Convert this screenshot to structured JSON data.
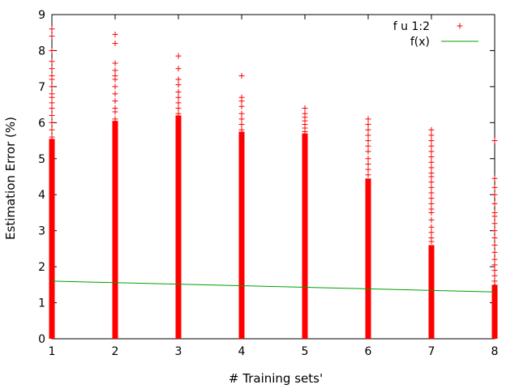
{
  "chart_data": {
    "type": "scatter",
    "xlabel": "# Training sets'",
    "ylabel": "Estimation Error (%)",
    "xlim": [
      1,
      8
    ],
    "ylim": [
      0,
      9
    ],
    "x_ticks": [
      1,
      2,
      3,
      4,
      5,
      6,
      7,
      8
    ],
    "y_ticks": [
      0,
      1,
      2,
      3,
      4,
      5,
      6,
      7,
      8,
      9
    ],
    "grid": false,
    "legend_position": "top-right",
    "series": [
      {
        "name": "f u 1:2",
        "type": "scatter",
        "marker": "plus",
        "color": "#ff0000",
        "columns": [
          {
            "x": 1,
            "dense_range": [
              0,
              5.55
            ],
            "points": [
              5.6,
              5.8,
              6.0,
              6.2,
              6.4,
              6.55,
              6.7,
              6.8,
              7.0,
              7.2,
              7.3,
              7.5,
              7.7,
              8.0,
              8.4,
              8.6
            ]
          },
          {
            "x": 2,
            "dense_range": [
              0,
              6.05
            ],
            "points": [
              6.1,
              6.3,
              6.4,
              6.6,
              6.8,
              7.0,
              7.2,
              7.3,
              7.45,
              7.65,
              8.2,
              8.45
            ]
          },
          {
            "x": 3,
            "dense_range": [
              0,
              6.2
            ],
            "points": [
              6.25,
              6.4,
              6.55,
              6.7,
              6.85,
              7.05,
              7.2,
              7.5,
              7.85
            ]
          },
          {
            "x": 4,
            "dense_range": [
              0,
              5.75
            ],
            "points": [
              5.8,
              5.95,
              6.1,
              6.25,
              6.45,
              6.6,
              6.7,
              7.3
            ]
          },
          {
            "x": 5,
            "dense_range": [
              0,
              5.7
            ],
            "points": [
              5.75,
              5.85,
              5.95,
              6.05,
              6.15,
              6.25,
              6.4
            ]
          },
          {
            "x": 6,
            "dense_range": [
              0,
              4.45
            ],
            "points": [
              4.55,
              4.7,
              4.85,
              5.0,
              5.2,
              5.35,
              5.5,
              5.65,
              5.8,
              5.95,
              6.1
            ]
          },
          {
            "x": 7,
            "dense_range": [
              0,
              2.6
            ],
            "points": [
              2.7,
              2.8,
              2.95,
              3.1,
              3.3,
              3.5,
              3.6,
              3.75,
              3.9,
              4.05,
              4.2,
              4.35,
              4.5,
              4.6,
              4.75,
              4.9,
              5.05,
              5.2,
              5.35,
              5.5,
              5.65,
              5.8
            ]
          },
          {
            "x": 8,
            "dense_range": [
              0,
              1.5
            ],
            "points": [
              1.6,
              1.75,
              1.9,
              2.05,
              2.2,
              2.4,
              2.6,
              2.8,
              3.0,
              3.2,
              3.4,
              3.5,
              3.75,
              4.0,
              4.2,
              4.45,
              5.5
            ]
          }
        ]
      },
      {
        "name": "f(x)",
        "type": "line",
        "color": "#00a000",
        "x": [
          1,
          8
        ],
        "y": [
          1.6,
          1.3
        ]
      }
    ]
  }
}
